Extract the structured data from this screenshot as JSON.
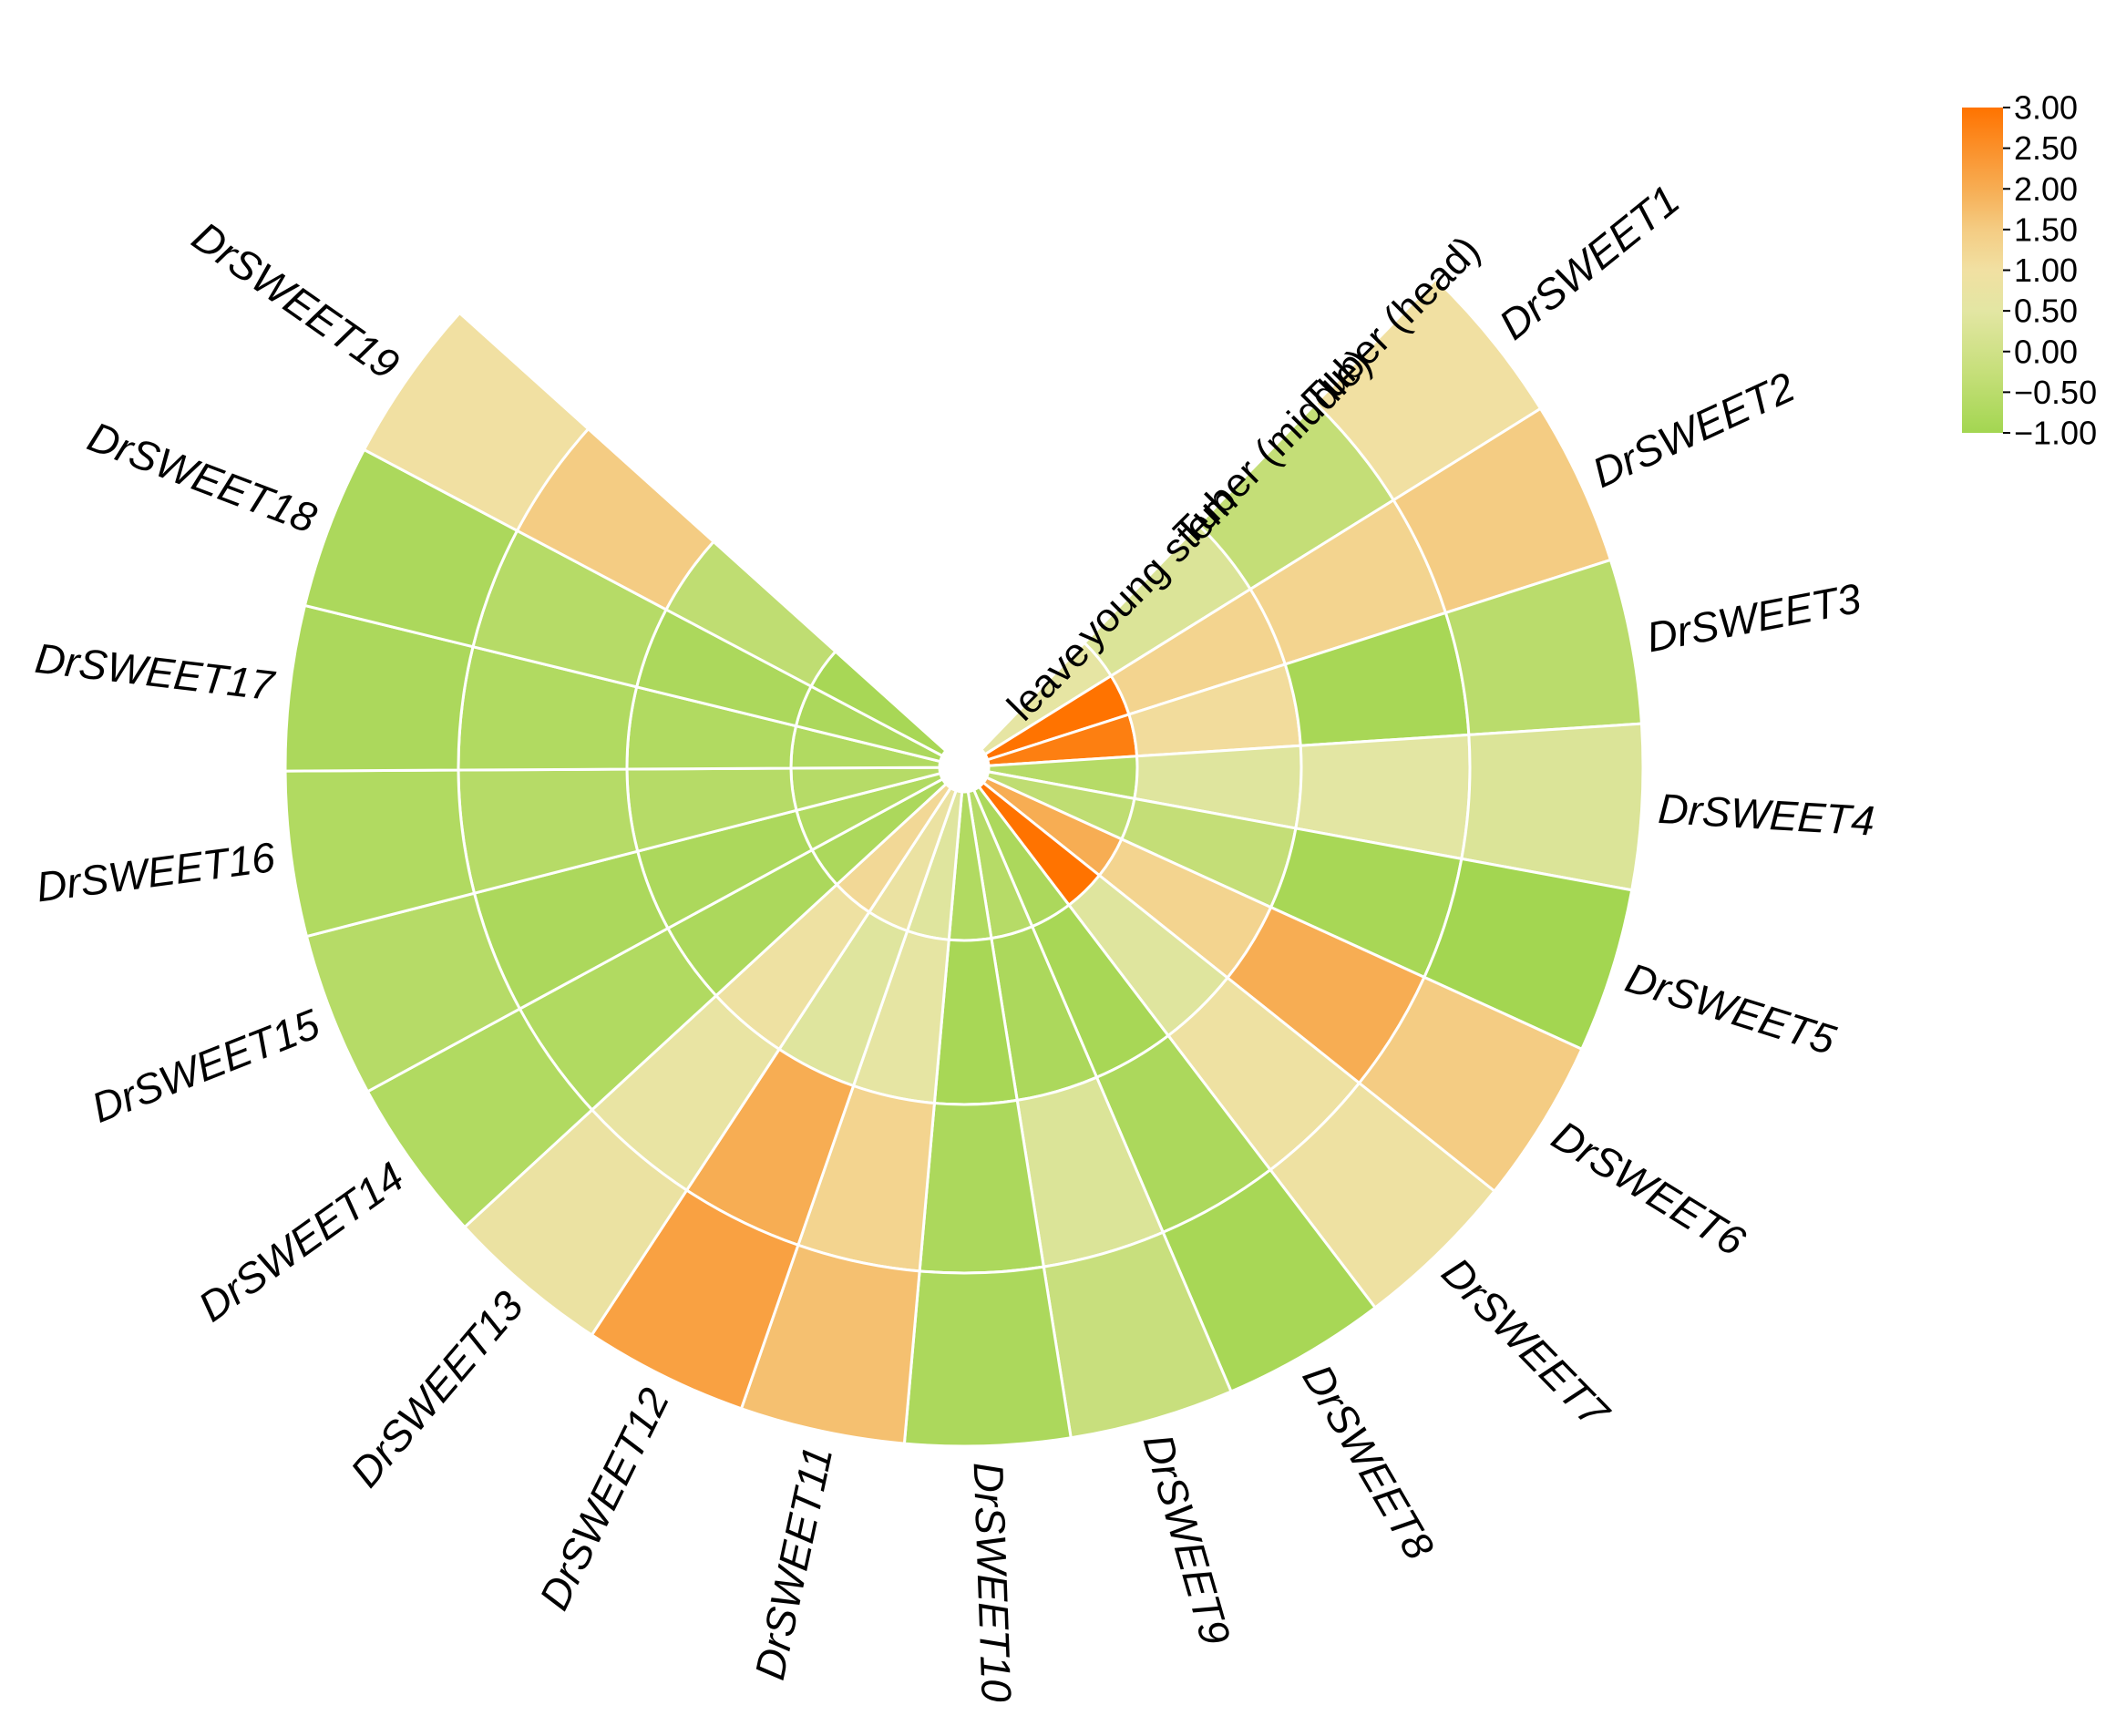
{
  "chart_data": {
    "type": "heatmap",
    "layout": "circular",
    "rings": [
      "leave",
      "young stem",
      "Tuber (middle)",
      "Tuber (head)"
    ],
    "genes": [
      "DrSWEET1",
      "DrSWEET2",
      "DrSWEET3",
      "DrSWEET4",
      "DrSWEET5",
      "DrSWEET6",
      "DrSWEET7",
      "DrSWEET8",
      "DrSWEET9",
      "DrSWEET10",
      "DrSWEET11",
      "DrSWEET12",
      "DrSWEET13",
      "DrSWEET14",
      "DrSWEET15",
      "DrSWEET16",
      "DrSWEET17",
      "DrSWEET18",
      "DrSWEET19"
    ],
    "values": [
      [
        0.6,
        0.3,
        -0.3,
        1.0
      ],
      [
        3.0,
        1.3,
        1.3,
        1.5
      ],
      [
        2.8,
        1.1,
        -0.9,
        -0.5
      ],
      [
        -0.6,
        0.4,
        0.5,
        0.3
      ],
      [
        -0.4,
        -0.3,
        -0.9,
        -1.0
      ],
      [
        2.0,
        1.3,
        2.0,
        1.5
      ],
      [
        3.0,
        0.4,
        0.9,
        0.9
      ],
      [
        -0.8,
        -0.9,
        -0.8,
        -0.9
      ],
      [
        -0.6,
        -0.8,
        0.3,
        -0.2
      ],
      [
        -0.7,
        -0.9,
        -0.8,
        -0.8
      ],
      [
        0.4,
        0.6,
        1.3,
        1.7
      ],
      [
        0.8,
        0.4,
        2.0,
        2.2
      ],
      [
        1.2,
        0.9,
        0.7,
        0.8
      ],
      [
        -0.8,
        -0.8,
        -0.7,
        -0.7
      ],
      [
        -0.7,
        -0.8,
        -0.8,
        -0.6
      ],
      [
        -0.6,
        -0.6,
        -0.6,
        -0.7
      ],
      [
        -0.7,
        -0.7,
        -0.7,
        -0.8
      ],
      [
        -0.8,
        -0.8,
        -0.6,
        -0.8
      ],
      [
        -0.9,
        -0.4,
        1.5,
        1.0
      ]
    ],
    "colorbar": {
      "min": -1.0,
      "max": 3.0,
      "ticks": [
        "3.00",
        "2.50",
        "2.00",
        "1.50",
        "1.00",
        "0.50",
        "0.00",
        "−0.50",
        "−1.00"
      ],
      "stops": [
        {
          "value": -1.0,
          "color": "#a3d651"
        },
        {
          "value": -0.25,
          "color": "#c6df7a"
        },
        {
          "value": 0.5,
          "color": "#e3e6a3"
        },
        {
          "value": 1.0,
          "color": "#f1e0a2"
        },
        {
          "value": 1.5,
          "color": "#f4cc83"
        },
        {
          "value": 2.0,
          "color": "#f7ad53"
        },
        {
          "value": 3.0,
          "color": "#ff7300"
        }
      ]
    },
    "legend_position": "top-right",
    "grid": false
  }
}
